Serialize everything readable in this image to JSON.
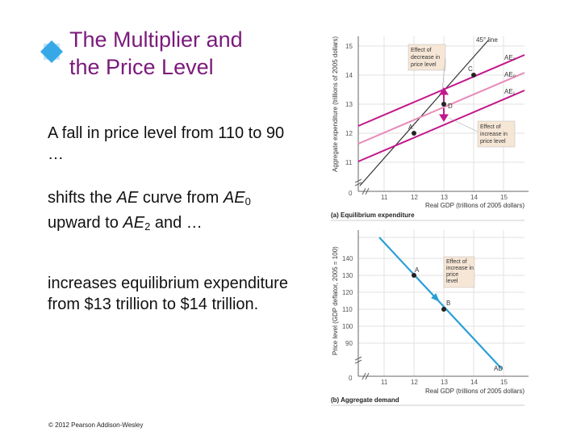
{
  "slide": {
    "title_line1": "The Multiplier and",
    "title_line2": "the Price Level",
    "p1": "A fall in price level from 110 to 90 …",
    "p2_pre": "shifts the ",
    "p2_ae": "AE",
    "p2_mid": " curve from ",
    "p2_ae0": "AE",
    "p2_sub0": "0",
    "p2_mid2": " upward to ",
    "p2_ae2": "AE",
    "p2_sub2": "2",
    "p2_end": " and …",
    "p3": "increases equilibrium expenditure from $13 trillion to $14 trillion.",
    "copyright": "© 2012 Pearson Addison-Wesley"
  },
  "graph_a": {
    "ylabel": "Aggregate expenditure (trillions of 2005 dollars)",
    "xlabel": "Real GDP (trillions of 2005 dollars)",
    "caption": "(a) Equilibrium expenditure",
    "y_ticks": [
      "11",
      "12",
      "13",
      "14",
      "15"
    ],
    "x_ticks": [
      "11",
      "12",
      "13",
      "14",
      "15"
    ],
    "origin": "0",
    "line45": "45° line",
    "ae2": "AE₂",
    "ae0": "AE₀",
    "ae1": "AE₁",
    "pt_c": "C",
    "pt_d": "D",
    "pt_a": "A",
    "box1": [
      "Effect of",
      "decrease in",
      "price level"
    ],
    "box2": [
      "Effect of",
      "increase in",
      "price level"
    ]
  },
  "graph_b": {
    "ylabel": "Price level (GDP deflator, 2005 = 100)",
    "xlabel": "Real GDP (trillions of 2005 dollars)",
    "caption": "(b) Aggregate demand",
    "y_ticks": [
      "90",
      "100",
      "110",
      "120",
      "130",
      "140"
    ],
    "x_ticks": [
      "11",
      "12",
      "13",
      "14",
      "15"
    ],
    "origin": "0",
    "ad": "AD",
    "pt_a": "A",
    "pt_b": "B",
    "box": [
      "Effect of",
      "increase in",
      "price",
      "level"
    ]
  },
  "colors": {
    "title": "#7b1a7b",
    "magenta": "#c2188c",
    "pink": "#e88ab8",
    "blue": "#2a9fd6",
    "diamond": "#36a8e8"
  }
}
